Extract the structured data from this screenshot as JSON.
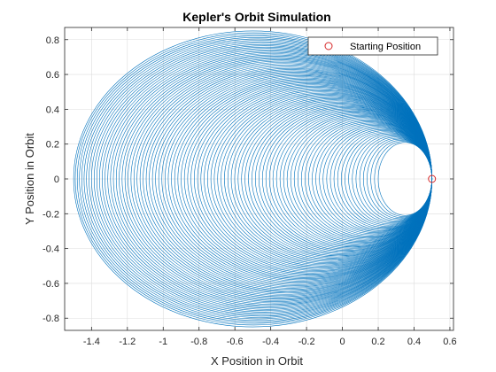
{
  "chart_data": {
    "type": "line",
    "title": "Kepler's Orbit Simulation",
    "xlabel": "X Position in Orbit",
    "ylabel": "Y Position in Orbit",
    "xlim": [
      -1.55,
      0.62
    ],
    "ylim": [
      -0.87,
      0.87
    ],
    "xticks": [
      -1.4,
      -1.2,
      -1,
      -0.8,
      -0.6,
      -0.4,
      -0.2,
      0,
      0.2,
      0.4,
      0.6
    ],
    "xtick_labels": [
      "-1.4",
      "-1.2",
      "-1",
      "-0.8",
      "-0.6",
      "-0.4",
      "-0.2",
      "0",
      "0.2",
      "0.4",
      "0.6"
    ],
    "yticks": [
      -0.8,
      -0.6,
      -0.4,
      -0.2,
      0,
      0.2,
      0.4,
      0.6,
      0.8
    ],
    "ytick_labels": [
      "-0.8",
      "-0.6",
      "-0.4",
      "-0.2",
      "0",
      "0.2",
      "0.4",
      "0.6",
      "0.8"
    ],
    "grid": true,
    "legend_placement": "top-right",
    "series": [
      {
        "label": "",
        "color": "#0072bd",
        "orbit_family": {
          "perihelion_x": 0.5,
          "aphelion_x_range": [
            -1.5,
            0.2
          ],
          "semi_minor_range": [
            0.21,
            0.85
          ],
          "orbit_count": 95
        }
      },
      {
        "name": "Starting Position",
        "marker": "circle",
        "color": "#d62728",
        "points": [
          {
            "x": 0.5,
            "y": 0
          }
        ]
      }
    ]
  }
}
